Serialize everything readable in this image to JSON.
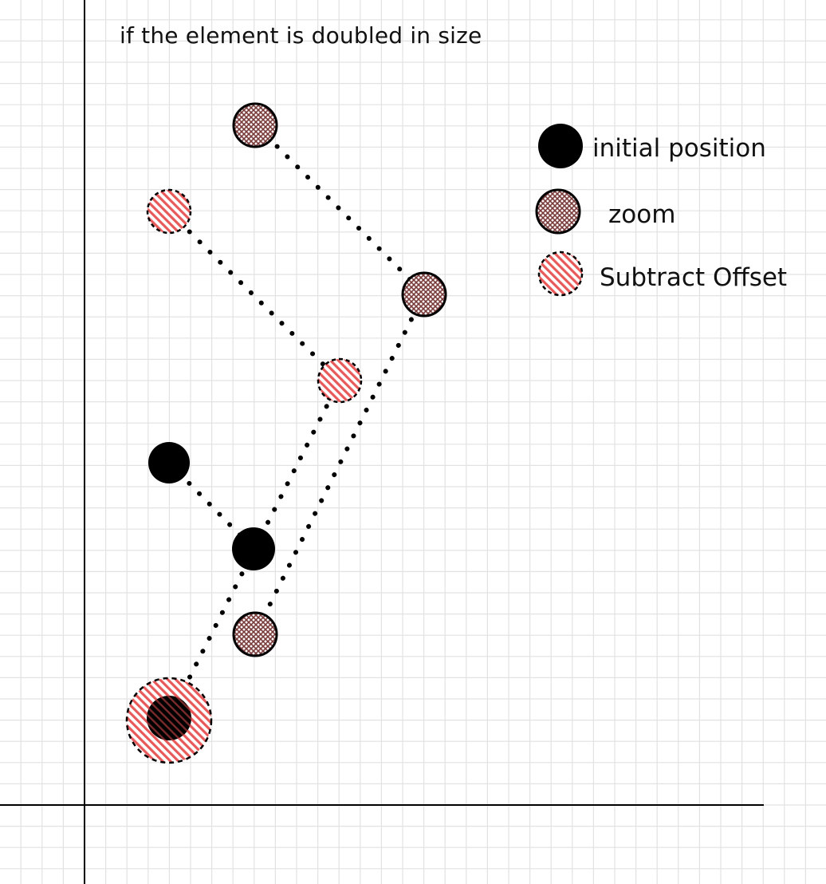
{
  "title": "if the element is doubled in size",
  "legend": {
    "initial": {
      "label": "initial position",
      "fill": "#000000"
    },
    "zoom": {
      "label": "zoom",
      "fill": "#7a3b3b",
      "pattern": "crosshatch"
    },
    "offset": {
      "label": "Subtract Offset",
      "fill": "#e23b3b",
      "pattern": "diagonal-stripes"
    }
  },
  "colors": {
    "grid": "#e2e2e2",
    "axis": "#000000",
    "dot_line": "#000000"
  }
}
